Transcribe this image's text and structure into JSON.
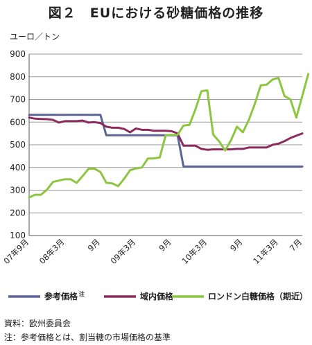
{
  "title": "図２　EUにおける砂糖価格の推移",
  "chart_data": {
    "type": "line",
    "ylabel": "ユーロ／トン",
    "ylim": [
      100,
      900
    ],
    "yticks": [
      100,
      200,
      300,
      400,
      500,
      600,
      700,
      800,
      900
    ],
    "grid": "horizontal",
    "x_range": [
      0,
      46
    ],
    "x_ticks": [
      {
        "pos": 0,
        "label": "07年9月"
      },
      {
        "pos": 6,
        "label": "08年3月"
      },
      {
        "pos": 12,
        "label": "9月"
      },
      {
        "pos": 18,
        "label": "09年3月"
      },
      {
        "pos": 24,
        "label": "9月"
      },
      {
        "pos": 30,
        "label": "10年3月"
      },
      {
        "pos": 36,
        "label": "9月"
      },
      {
        "pos": 42,
        "label": "11年3月"
      },
      {
        "pos": 46,
        "label": "7月"
      }
    ],
    "series": [
      {
        "name": "参考価格",
        "name_sup": "注",
        "color": "#5c6496",
        "points": [
          [
            0,
            632
          ],
          [
            1,
            632
          ],
          [
            2,
            632
          ],
          [
            3,
            632
          ],
          [
            4,
            632
          ],
          [
            5,
            632
          ],
          [
            6,
            632
          ],
          [
            7,
            632
          ],
          [
            8,
            632
          ],
          [
            9,
            632
          ],
          [
            10,
            632
          ],
          [
            11,
            632
          ],
          [
            12,
            632
          ],
          [
            13,
            542
          ],
          [
            14,
            542
          ],
          [
            15,
            542
          ],
          [
            16,
            542
          ],
          [
            17,
            542
          ],
          [
            18,
            542
          ],
          [
            19,
            542
          ],
          [
            20,
            542
          ],
          [
            21,
            542
          ],
          [
            22,
            542
          ],
          [
            23,
            542
          ],
          [
            24,
            542
          ],
          [
            25,
            542
          ],
          [
            26,
            404
          ],
          [
            27,
            404
          ],
          [
            28,
            404
          ],
          [
            29,
            404
          ],
          [
            30,
            404
          ],
          [
            31,
            404
          ],
          [
            32,
            404
          ],
          [
            33,
            404
          ],
          [
            34,
            404
          ],
          [
            35,
            404
          ],
          [
            36,
            404
          ],
          [
            37,
            404
          ],
          [
            38,
            404
          ],
          [
            39,
            404
          ],
          [
            40,
            404
          ],
          [
            41,
            404
          ],
          [
            42,
            404
          ],
          [
            43,
            404
          ],
          [
            44,
            404
          ],
          [
            45,
            404
          ],
          [
            46,
            404
          ]
        ]
      },
      {
        "name": "域内価格",
        "color": "#8a2a5e",
        "points": [
          [
            0,
            620
          ],
          [
            1,
            615
          ],
          [
            2,
            614
          ],
          [
            3,
            613
          ],
          [
            4,
            610
          ],
          [
            5,
            598
          ],
          [
            6,
            604
          ],
          [
            7,
            604
          ],
          [
            8,
            604
          ],
          [
            9,
            607
          ],
          [
            10,
            598
          ],
          [
            11,
            600
          ],
          [
            12,
            596
          ],
          [
            13,
            580
          ],
          [
            14,
            575
          ],
          [
            15,
            575
          ],
          [
            16,
            570
          ],
          [
            17,
            555
          ],
          [
            18,
            572
          ],
          [
            19,
            566
          ],
          [
            20,
            566
          ],
          [
            21,
            562
          ],
          [
            22,
            562
          ],
          [
            23,
            562
          ],
          [
            24,
            560
          ],
          [
            25,
            550
          ],
          [
            26,
            496
          ],
          [
            27,
            496
          ],
          [
            28,
            496
          ],
          [
            29,
            482
          ],
          [
            30,
            478
          ],
          [
            31,
            480
          ],
          [
            32,
            480
          ],
          [
            33,
            480
          ],
          [
            34,
            480
          ],
          [
            35,
            482
          ],
          [
            36,
            482
          ],
          [
            37,
            488
          ],
          [
            38,
            488
          ],
          [
            39,
            488
          ],
          [
            40,
            488
          ],
          [
            41,
            500
          ],
          [
            42,
            505
          ],
          [
            43,
            516
          ],
          [
            44,
            530
          ],
          [
            45,
            540
          ],
          [
            46,
            550
          ]
        ]
      },
      {
        "name": "ロンドン白糖価格（期近）",
        "color": "#8cc63f",
        "points": [
          [
            0,
            268
          ],
          [
            1,
            280
          ],
          [
            2,
            280
          ],
          [
            3,
            302
          ],
          [
            4,
            336
          ],
          [
            5,
            342
          ],
          [
            6,
            348
          ],
          [
            7,
            348
          ],
          [
            8,
            332
          ],
          [
            9,
            362
          ],
          [
            10,
            394
          ],
          [
            11,
            395
          ],
          [
            12,
            380
          ],
          [
            13,
            333
          ],
          [
            14,
            330
          ],
          [
            15,
            318
          ],
          [
            16,
            350
          ],
          [
            17,
            388
          ],
          [
            18,
            396
          ],
          [
            19,
            400
          ],
          [
            20,
            440
          ],
          [
            21,
            440
          ],
          [
            22,
            444
          ],
          [
            23,
            542
          ],
          [
            24,
            544
          ],
          [
            25,
            544
          ],
          [
            26,
            585
          ],
          [
            27,
            588
          ],
          [
            28,
            655
          ],
          [
            29,
            736
          ],
          [
            30,
            740
          ],
          [
            31,
            545
          ],
          [
            32,
            515
          ],
          [
            33,
            475
          ],
          [
            34,
            520
          ],
          [
            35,
            580
          ],
          [
            36,
            555
          ],
          [
            37,
            610
          ],
          [
            38,
            680
          ],
          [
            39,
            762
          ],
          [
            40,
            765
          ],
          [
            41,
            788
          ],
          [
            42,
            795
          ],
          [
            43,
            715
          ],
          [
            44,
            700
          ],
          [
            45,
            620
          ],
          [
            46,
            715
          ],
          [
            47,
            812
          ]
        ]
      }
    ]
  },
  "notes": [
    "資料：欧州委員会",
    "注：参考価格とは、割当糖の市場価格の基準"
  ]
}
